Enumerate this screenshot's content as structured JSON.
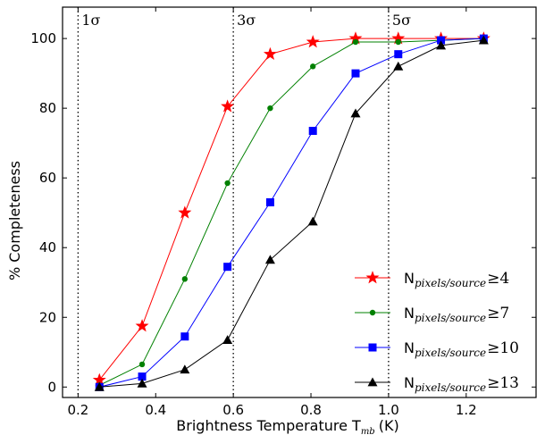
{
  "chart_data": {
    "type": "line",
    "xlabel": "Brightness Temperature T",
    "xlabel_sub": "mb",
    "xlabel_unit": "(K)",
    "ylabel": "% Completeness",
    "xlim": [
      0.16,
      1.38
    ],
    "ylim": [
      -3,
      109
    ],
    "xticks": [
      0.2,
      0.4,
      0.6,
      0.8,
      1.0,
      1.2
    ],
    "xtick_labels": [
      "0.2",
      "0.4",
      "0.6",
      "0.8",
      "1.0",
      "1.2"
    ],
    "yticks": [
      0,
      20,
      40,
      60,
      80,
      100
    ],
    "ytick_labels": [
      "0",
      "20",
      "40",
      "60",
      "80",
      "100"
    ],
    "grid": false,
    "legend_position": "bottom-right",
    "reference_lines": [
      {
        "x": 0.2,
        "label": "1σ"
      },
      {
        "x": 0.6,
        "label": "3σ"
      },
      {
        "x": 1.0,
        "label": "5σ"
      }
    ],
    "series": [
      {
        "name": "N",
        "name_sub": "pixels/source",
        "name_rel": "≥4",
        "color": "#ff0000",
        "marker": "star",
        "x": [
          0.255,
          0.365,
          0.475,
          0.585,
          0.695,
          0.805,
          0.915,
          1.025,
          1.135,
          1.245
        ],
        "y": [
          2,
          17.5,
          50,
          80.5,
          95.5,
          99,
          100,
          100,
          100,
          100
        ]
      },
      {
        "name": "N",
        "name_sub": "pixels/source",
        "name_rel": "≥7",
        "color": "#008000",
        "marker": "circle",
        "x": [
          0.255,
          0.365,
          0.475,
          0.585,
          0.695,
          0.805,
          0.915,
          1.025,
          1.135,
          1.245
        ],
        "y": [
          0.5,
          6.5,
          31,
          58.5,
          80,
          92,
          99,
          99,
          99.5,
          100
        ]
      },
      {
        "name": "N",
        "name_sub": "pixels/source",
        "name_rel": "≥10",
        "color": "#0000ff",
        "marker": "square",
        "x": [
          0.255,
          0.365,
          0.475,
          0.585,
          0.695,
          0.805,
          0.915,
          1.025,
          1.135,
          1.245
        ],
        "y": [
          0,
          3,
          14.5,
          34.5,
          53,
          73.5,
          90,
          95.5,
          99.5,
          100
        ]
      },
      {
        "name": "N",
        "name_sub": "pixels/source",
        "name_rel": "≥13",
        "color": "#000000",
        "marker": "triangle",
        "x": [
          0.255,
          0.365,
          0.475,
          0.585,
          0.695,
          0.805,
          0.915,
          1.025,
          1.135,
          1.245
        ],
        "y": [
          0,
          1,
          5,
          13.5,
          36.5,
          47.5,
          78.5,
          92,
          98,
          99.5
        ]
      }
    ]
  }
}
